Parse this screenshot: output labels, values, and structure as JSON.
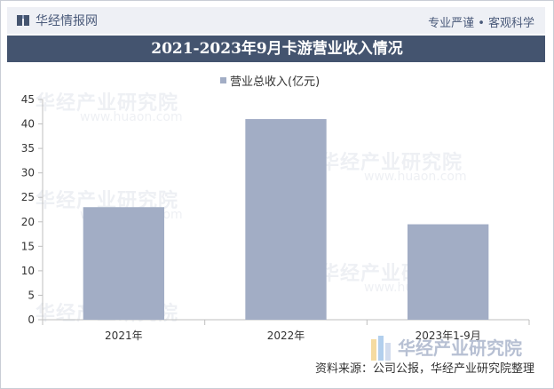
{
  "header": {
    "logo_text": "华经情报网",
    "slogan": "专业严谨 • 客观科学"
  },
  "title": "2021-2023年9月卡游营业收入情况",
  "legend": {
    "label": "营业总收入(亿元)"
  },
  "colors": {
    "bar": "#a2adc5",
    "title_bg": "#44546f"
  },
  "chart_data": {
    "type": "bar",
    "categories": [
      "2021年",
      "2022年",
      "2023年1-9月"
    ],
    "series": [
      {
        "name": "营业总收入(亿元)",
        "values": [
          23,
          41,
          19.5
        ]
      }
    ],
    "ylim": [
      0,
      45
    ],
    "yticks": [
      0,
      5,
      10,
      15,
      20,
      25,
      30,
      35,
      40,
      45
    ],
    "grid": false,
    "legend_position": "top"
  },
  "watermark": {
    "text": "华经产业研究院",
    "sub": "www.huaon.com"
  },
  "brand": {
    "text": "华经产业研究院"
  },
  "source": "资料来源：公司公报，华经产业研究院整理"
}
